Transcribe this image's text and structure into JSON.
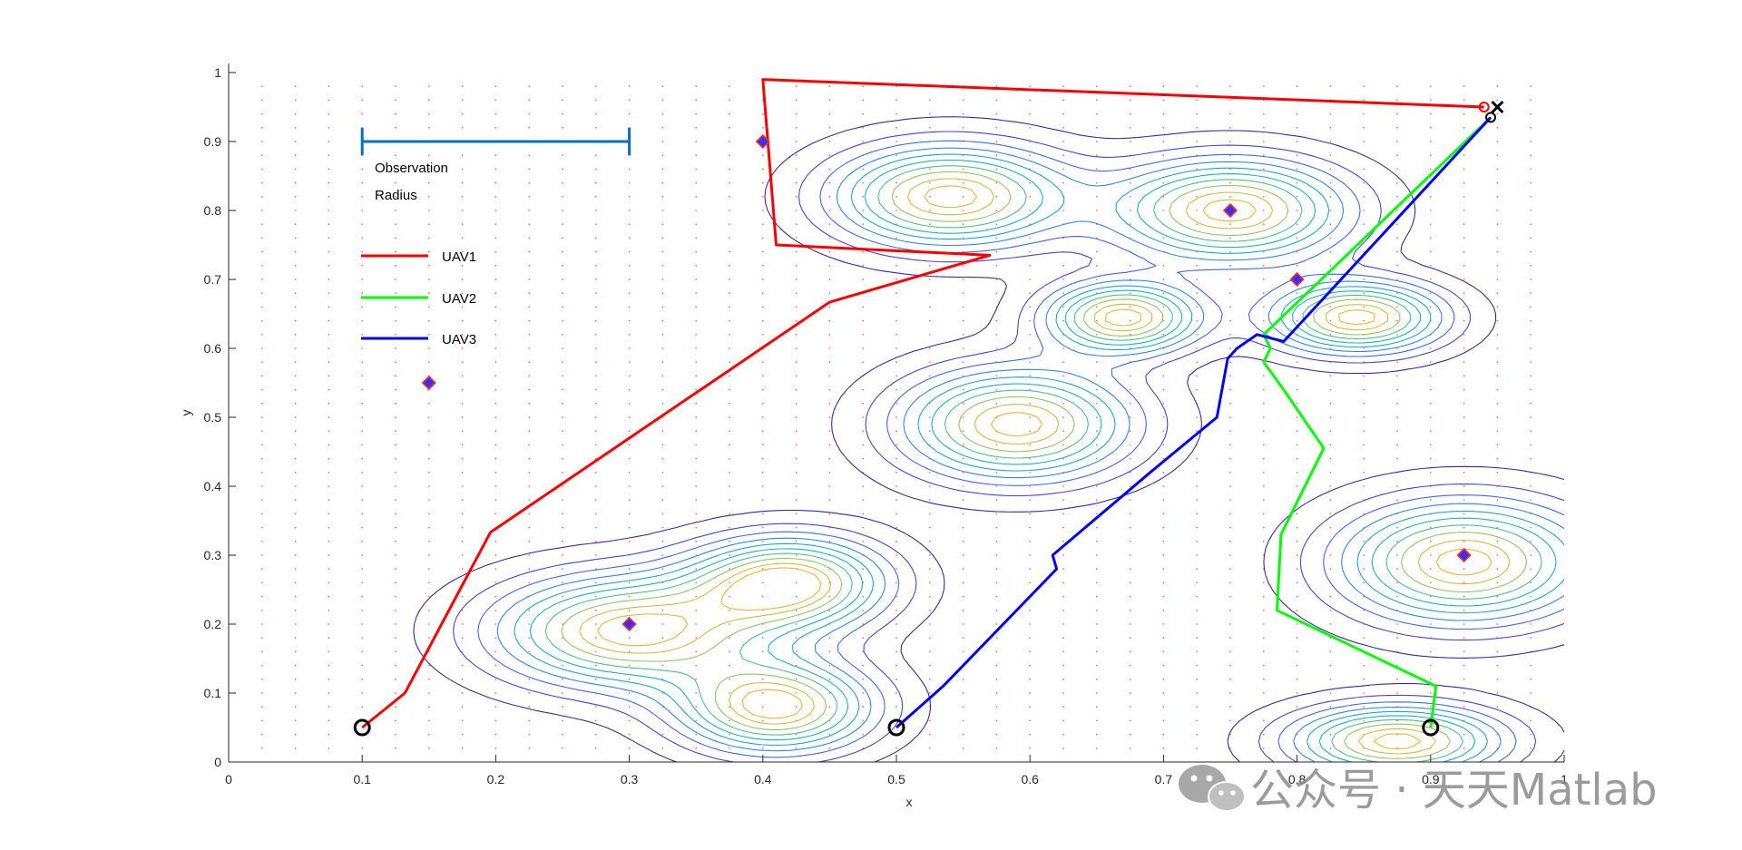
{
  "chart_data": {
    "type": "line",
    "xlabel": "x",
    "ylabel": "y",
    "xlim": [
      0,
      1
    ],
    "ylim": [
      0,
      1
    ],
    "xticks": [
      "0",
      "0.1",
      "0.2",
      "0.3",
      "0.4",
      "0.5",
      "0.6",
      "0.7",
      "0.8",
      "0.9",
      "1"
    ],
    "yticks": [
      "0",
      "0.1",
      "0.2",
      "0.3",
      "0.4",
      "0.5",
      "0.6",
      "0.7",
      "0.8",
      "0.9",
      "1"
    ],
    "grid": "dotted-red-points",
    "legend_position": "top-left",
    "observation_radius": {
      "label_line1": "Observation",
      "label_line2": "Radius",
      "x_start": 0.1,
      "x_end": 0.3,
      "y": 0.9,
      "color": "#0072BD"
    },
    "series": [
      {
        "name": "UAV1",
        "color": "#ff0000",
        "x": [
          0.1,
          0.132,
          0.196,
          0.45,
          0.57,
          0.41,
          0.4,
          0.94
        ],
        "y": [
          0.05,
          0.1,
          0.333,
          0.667,
          0.735,
          0.75,
          0.99,
          0.95
        ]
      },
      {
        "name": "UAV2",
        "color": "#00ff00",
        "x": [
          0.9,
          0.904,
          0.785,
          0.788,
          0.82,
          0.79,
          0.775,
          0.78,
          0.775,
          0.945
        ],
        "y": [
          0.05,
          0.11,
          0.22,
          0.33,
          0.455,
          0.54,
          0.58,
          0.6,
          0.62,
          0.935
        ]
      },
      {
        "name": "UAV3",
        "color": "#0000ff",
        "x": [
          0.5,
          0.535,
          0.62,
          0.617,
          0.69,
          0.74,
          0.748,
          0.755,
          0.77,
          0.79,
          0.945
        ],
        "y": [
          0.05,
          0.11,
          0.28,
          0.3,
          0.42,
          0.5,
          0.585,
          0.6,
          0.62,
          0.61,
          0.935
        ]
      }
    ],
    "start_points": [
      {
        "x": 0.1,
        "y": 0.05
      },
      {
        "x": 0.5,
        "y": 0.05
      },
      {
        "x": 0.9,
        "y": 0.05
      }
    ],
    "end_markers": [
      {
        "x": 0.94,
        "y": 0.95,
        "type": "circle",
        "color": "#ff0000"
      },
      {
        "x": 0.945,
        "y": 0.935,
        "type": "circle",
        "color": "#000000"
      },
      {
        "x": 0.95,
        "y": 0.95,
        "type": "cross",
        "color": "#000000"
      }
    ],
    "targets": [
      {
        "x": 0.15,
        "y": 0.55
      },
      {
        "x": 0.3,
        "y": 0.2
      },
      {
        "x": 0.4,
        "y": 0.9
      },
      {
        "x": 0.75,
        "y": 0.8
      },
      {
        "x": 0.8,
        "y": 0.7
      },
      {
        "x": 0.925,
        "y": 0.3
      }
    ],
    "contour_peaks": [
      {
        "x": 0.54,
        "y": 0.82,
        "sx": 0.06,
        "sy": 0.05
      },
      {
        "x": 0.75,
        "y": 0.8,
        "sx": 0.06,
        "sy": 0.05
      },
      {
        "x": 0.67,
        "y": 0.645,
        "sx": 0.04,
        "sy": 0.035
      },
      {
        "x": 0.845,
        "y": 0.645,
        "sx": 0.045,
        "sy": 0.035
      },
      {
        "x": 0.59,
        "y": 0.49,
        "sx": 0.06,
        "sy": 0.055
      },
      {
        "x": 0.3,
        "y": 0.19,
        "sx": 0.07,
        "sy": 0.055
      },
      {
        "x": 0.42,
        "y": 0.26,
        "sx": 0.05,
        "sy": 0.045
      },
      {
        "x": 0.41,
        "y": 0.08,
        "sx": 0.05,
        "sy": 0.045
      },
      {
        "x": 0.925,
        "y": 0.29,
        "sx": 0.065,
        "sy": 0.06
      },
      {
        "x": 0.875,
        "y": 0.03,
        "sx": 0.055,
        "sy": 0.035
      }
    ]
  },
  "watermark": {
    "text": "公众号 · 天天Matlab",
    "icon": "wechat-icon"
  }
}
